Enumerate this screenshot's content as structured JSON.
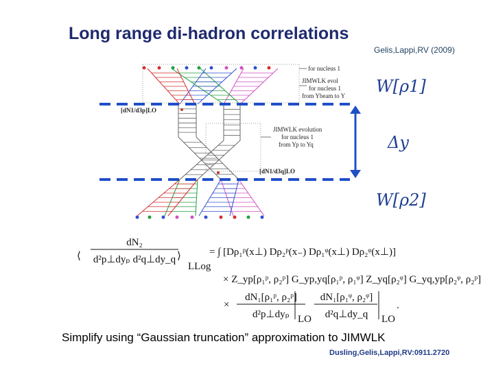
{
  "header": {
    "title": "Long range di-hadron correlations",
    "citation": "Gelis,Lappi,RV (2009)"
  },
  "diagram": {
    "top_labels": [
      "for nucleus 1",
      "JIMWLK evol",
      "for nucleus 1",
      "from Ybeam to Y"
    ],
    "middle_labels": [
      "JIMWLK evolution",
      "for nucleus 1",
      "from Yp to Yq"
    ],
    "vertex_labels": [
      "[dN1/d3p]LO",
      "[dN1/d3q]LO"
    ],
    "right_labels": [
      "W[ρ1]",
      "Δy",
      "W[ρ2]"
    ]
  },
  "equation": {
    "lhs_numerator": "dN₂",
    "lhs_denominator": "d²p⊥dyₚ d²q⊥dy_q",
    "lhs_subscript": "LLog",
    "rhs": "= ∫ [Dρ₁ᵖ(x⊥) Dρ₂ᵖ(x₋) Dρ₁ᵠ(x⊥) Dρ₂ᵠ(x⊥)]",
    "line2": "× Z_yp[ρ₁ᵖ, ρ₂ᵖ] G_yp,yq[ρ₁ᵖ, ρ₁ᵠ] Z_yq[ρ₂ᵠ] G_yq,yp[ρ₂ᵠ, ρ₂ᵖ]",
    "times": "×",
    "frac1_numerator": "dN₁[ρ₁ᵖ, ρ₂ᵖ]",
    "frac1_denominator": "d²p⊥dyₚ",
    "frac2_numerator": "dN₁[ρ₁ᵠ, ρ₂ᵠ]",
    "frac2_denominator": "d²q⊥dy_q",
    "lo": "LO",
    "end": "."
  },
  "caption": "Simplify using “Gaussian truncation” approximation to JIMWLK",
  "footer": "Dusling,Gelis,Lappi,RV:0911.2720"
}
